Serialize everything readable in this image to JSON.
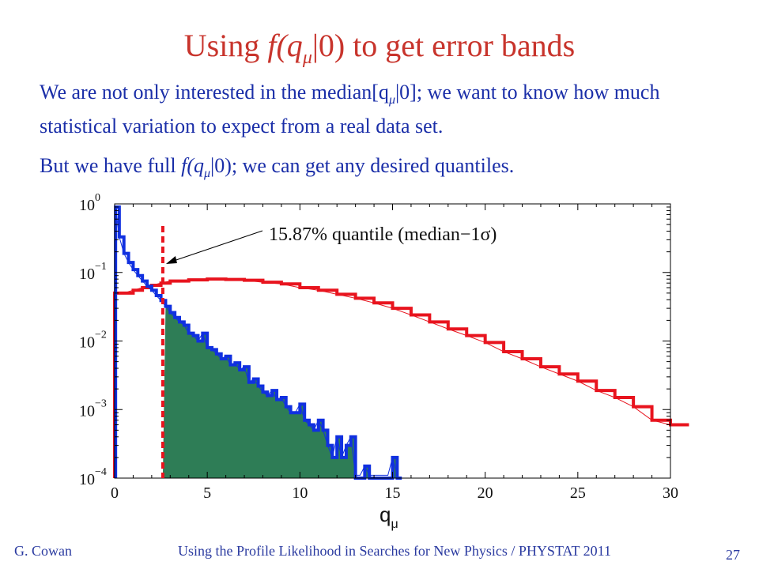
{
  "slide": {
    "title_prefix": "Using ",
    "title_f": "f",
    "title_q": "(q",
    "title_mu": "μ",
    "title_suffix": "|0) to get error bands",
    "para1_a": "We are not only interested in the median[q",
    "para1_mu": "μ",
    "para1_b": "|0]; we want to know how much statistical variation to expect from a real data set.",
    "para2_a": "But we have full ",
    "para2_f": "f",
    "para2_q": "(q",
    "para2_mu": "μ",
    "para2_b": "|0); we can get any desired quantiles.",
    "footer_left": "G. Cowan",
    "footer_center": "Using the Profile Likelihood in Searches for New Physics / PHYSTAT 2011",
    "page_number": "27",
    "colors": {
      "title": "#c8342c",
      "text": "#1a2ea8",
      "red": "#e8141e",
      "blue": "#1030e0",
      "fill": "#2e7d56"
    }
  },
  "chart_data": {
    "type": "histogram",
    "xlabel": "q",
    "xlabel_sub": "μ",
    "xlim": [
      0,
      30
    ],
    "ylim": [
      0.0001,
      1
    ],
    "yscale": "log",
    "xticks": [
      "0",
      "5",
      "10",
      "15",
      "20",
      "25",
      "30"
    ],
    "yticks": [
      {
        "base": "10",
        "exp": "0"
      },
      {
        "base": "10",
        "exp": "−1"
      },
      {
        "base": "10",
        "exp": "−2"
      },
      {
        "base": "10",
        "exp": "−3"
      },
      {
        "base": "10",
        "exp": "−4"
      }
    ],
    "annotation": "15.87% quantile (median−1σ)",
    "quantile_x": 2.6,
    "series": [
      {
        "color": "blue",
        "x": [
          0.05,
          0.25,
          0.5,
          0.75,
          1.0,
          1.25,
          1.5,
          1.75,
          2.0,
          2.25,
          2.5,
          2.75,
          3.0,
          3.25,
          3.5,
          3.75,
          4.0,
          4.25,
          4.5,
          4.75,
          5.0,
          5.25,
          5.5,
          5.75,
          6.0,
          6.25,
          6.5,
          6.75,
          7.0,
          7.25,
          7.5,
          7.75,
          8.0,
          8.25,
          8.5,
          8.75,
          9.0,
          9.25,
          9.5,
          9.75,
          10.0,
          10.25,
          10.5,
          10.75,
          11.0,
          11.25,
          11.5,
          11.75,
          12.0,
          12.25,
          12.5,
          12.75,
          13.0,
          13.25,
          13.5,
          13.75,
          14.0,
          14.25,
          14.5,
          14.75,
          15.0,
          15.25
        ],
        "y": [
          0.9,
          0.33,
          0.19,
          0.14,
          0.11,
          0.09,
          0.075,
          0.063,
          0.055,
          0.046,
          0.039,
          0.032,
          0.026,
          0.022,
          0.019,
          0.017,
          0.013,
          0.012,
          0.01,
          0.013,
          0.008,
          0.0075,
          0.0065,
          0.0055,
          0.006,
          0.0045,
          0.0048,
          0.0038,
          0.0042,
          0.0025,
          0.0028,
          0.0022,
          0.0018,
          0.0016,
          0.0019,
          0.0014,
          0.0015,
          0.0011,
          0.0009,
          0.0009,
          0.0012,
          0.0007,
          0.0006,
          0.0005,
          0.0007,
          0.0005,
          0.0003,
          0.0002,
          0.0004,
          0.0002,
          0.0003,
          0.0004,
          0.0001,
          0.0001,
          0.00015,
          0.0001,
          0.0001,
          0.0001,
          0.0001,
          0.0001,
          0.0002,
          0.0001
        ]
      },
      {
        "color": "red",
        "x": [
          0.0,
          0.5,
          1.0,
          1.5,
          2.0,
          2.5,
          3.0,
          4.0,
          5.0,
          6.0,
          7.0,
          8.0,
          9.0,
          10.0,
          11.0,
          12.0,
          13.0,
          14.0,
          15.0,
          16.0,
          17.0,
          18.0,
          19.0,
          20.0,
          21.0,
          22.0,
          23.0,
          24.0,
          25.0,
          26.0,
          27.0,
          28.0,
          29.0,
          30.0
        ],
        "y": [
          0.05,
          0.05,
          0.055,
          0.06,
          0.065,
          0.07,
          0.075,
          0.078,
          0.08,
          0.079,
          0.077,
          0.072,
          0.068,
          0.06,
          0.055,
          0.048,
          0.042,
          0.036,
          0.03,
          0.024,
          0.019,
          0.015,
          0.012,
          0.0095,
          0.007,
          0.0055,
          0.0042,
          0.0033,
          0.0026,
          0.0019,
          0.0015,
          0.0011,
          0.0007,
          0.0006
        ]
      }
    ]
  }
}
